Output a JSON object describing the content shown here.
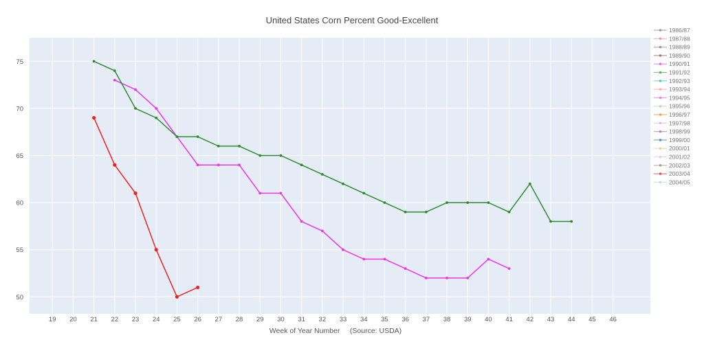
{
  "chart_data": {
    "type": "line",
    "title": "United States Corn Percent Good-Excellent",
    "xlabel": "Week of Year Number     (Source: USDA)",
    "ylabel": "",
    "xlim": [
      17.9,
      47.8
    ],
    "ylim": [
      48.2,
      77.5
    ],
    "x_ticks": [
      19,
      20,
      21,
      22,
      23,
      24,
      25,
      26,
      27,
      28,
      29,
      30,
      31,
      32,
      33,
      34,
      35,
      36,
      37,
      38,
      39,
      40,
      41,
      42,
      43,
      44,
      45,
      46
    ],
    "y_ticks": [
      50,
      55,
      60,
      65,
      70,
      75
    ],
    "grid": true,
    "legend_position": "right",
    "legend": [
      {
        "name": "1986/87",
        "color": "#7f7f7f"
      },
      {
        "name": "1987/88",
        "color": "#e377c2"
      },
      {
        "name": "1988/89",
        "color": "#9467bd"
      },
      {
        "name": "1989/90",
        "color": "#8c564b"
      },
      {
        "name": "1990/91",
        "color": "#e040e0"
      },
      {
        "name": "1991/92",
        "color": "#2ca02c"
      },
      {
        "name": "1992/93",
        "color": "#17becf"
      },
      {
        "name": "1993/94",
        "color": "#ff9896"
      },
      {
        "name": "1994/95",
        "color": "#f05cf0"
      },
      {
        "name": "1995/96",
        "color": "#98df8a"
      },
      {
        "name": "1996/97",
        "color": "#ff7f0e"
      },
      {
        "name": "1997/98",
        "color": "#c5b0d5"
      },
      {
        "name": "1998/99",
        "color": "#bc5bbc"
      },
      {
        "name": "1999/00",
        "color": "#1f77b4"
      },
      {
        "name": "2000/01",
        "color": "#ffbb78"
      },
      {
        "name": "2001/02",
        "color": "#f7b6d2"
      },
      {
        "name": "2002/03",
        "color": "#8c8c5c"
      },
      {
        "name": "2003/04",
        "color": "#d62728"
      },
      {
        "name": "2004/05",
        "color": "#9edae5"
      }
    ],
    "series": [
      {
        "name": "1994/95",
        "color": "#ee33ee",
        "x": [
          22,
          23,
          24,
          25,
          26,
          27,
          28,
          29,
          30,
          31,
          32,
          33,
          34,
          35,
          36,
          37,
          38,
          39,
          40,
          41
        ],
        "y": [
          73,
          72,
          70,
          67,
          64,
          64,
          64,
          61,
          61,
          58,
          57,
          55,
          54,
          54,
          53,
          52,
          52,
          52,
          54,
          53
        ]
      },
      {
        "name": "1991/92",
        "color": "#2e8b2e",
        "x": [
          21,
          22,
          23,
          24,
          25,
          26,
          27,
          28,
          29,
          30,
          31,
          32,
          33,
          34,
          35,
          36,
          37,
          38,
          39,
          40,
          41,
          42,
          43,
          44
        ],
        "y": [
          75,
          74,
          70,
          69,
          67,
          67,
          66,
          66,
          65,
          65,
          64,
          63,
          62,
          61,
          60,
          59,
          59,
          60,
          60,
          60,
          59,
          62,
          58,
          58
        ]
      },
      {
        "name": "",
        "color": "#ee2222",
        "x": [
          21,
          22,
          23,
          24,
          25,
          26
        ],
        "y": [
          69,
          64,
          61,
          55,
          50,
          51
        ]
      }
    ]
  }
}
